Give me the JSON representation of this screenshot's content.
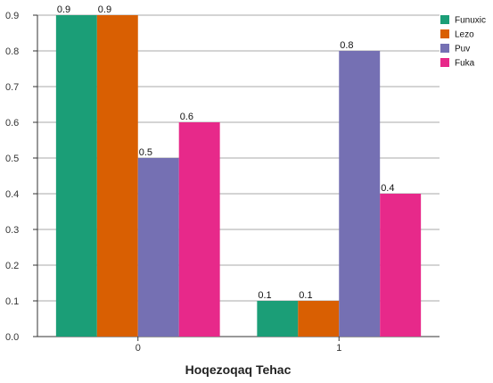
{
  "chart_data": {
    "type": "bar",
    "title": "",
    "xlabel": "Hoqezoqaq Tehac",
    "ylabel": "",
    "categories": [
      "0",
      "1"
    ],
    "series": [
      {
        "name": "Funuxic",
        "values": [
          0.9,
          0.1
        ],
        "color": "#1b9e77"
      },
      {
        "name": "Lezo",
        "values": [
          0.9,
          0.1
        ],
        "color": "#d95f02"
      },
      {
        "name": "Puv",
        "values": [
          0.5,
          0.8
        ],
        "color": "#7570b3"
      },
      {
        "name": "Fuka",
        "values": [
          0.6,
          0.4
        ],
        "color": "#e7298a"
      }
    ],
    "ylim": [
      0,
      0.9
    ],
    "yticks": [
      "0.0",
      "0.1",
      "0.2",
      "0.3",
      "0.4",
      "0.5",
      "0.6",
      "0.7",
      "0.8",
      "0.9"
    ],
    "grid": true,
    "legend_position": "top-right"
  }
}
